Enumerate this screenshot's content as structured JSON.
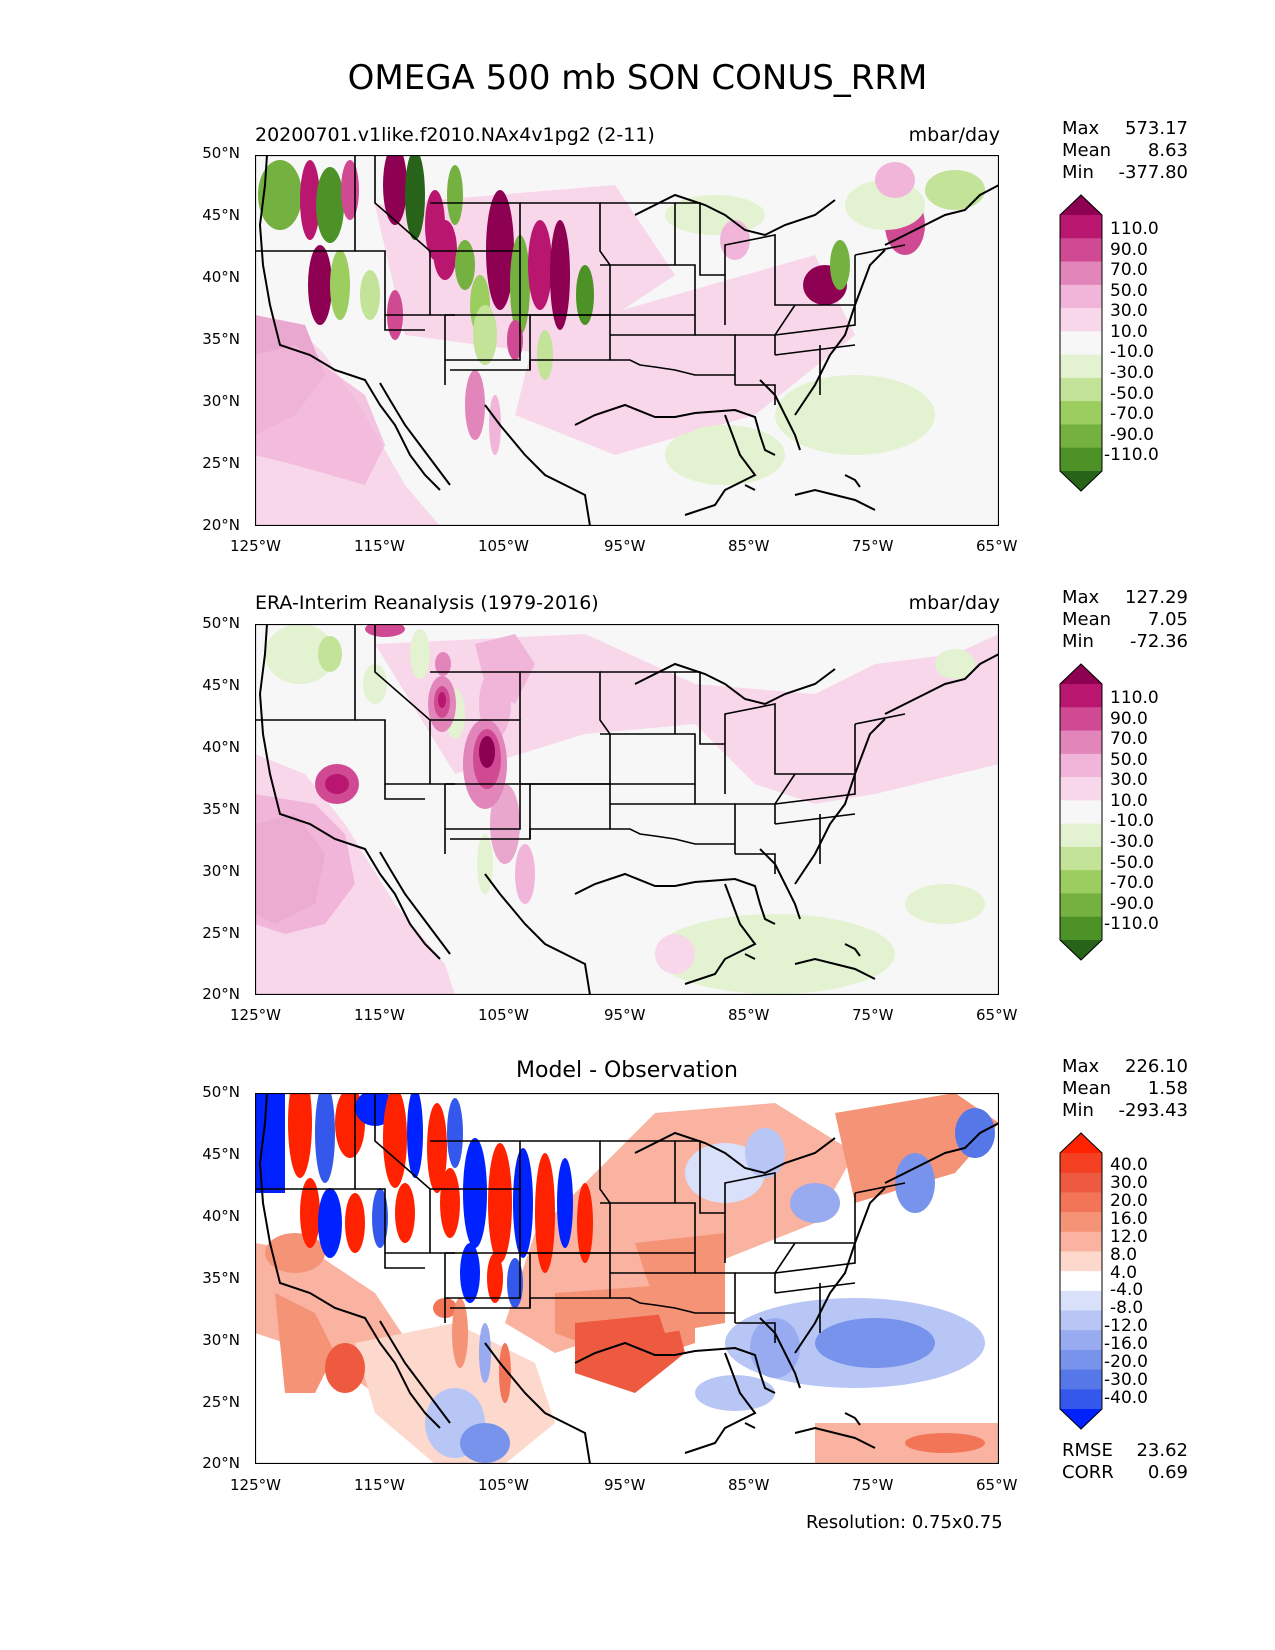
{
  "figure": {
    "title": "OMEGA 500 mb SON CONUS_RRM",
    "resolution_label": "Resolution: 0.75x0.75"
  },
  "chart_data": [
    {
      "type": "heatmap",
      "panel": "model",
      "left_title": "20200701.v1like.f2010.NAx4v1pg2 (2-11)",
      "units": "mbar/day",
      "stats": {
        "max_label": "Max",
        "max": "573.17",
        "mean_label": "Mean",
        "mean": "8.63",
        "min_label": "Min",
        "min": "-377.80"
      },
      "xticks": [
        "125°W",
        "115°W",
        "105°W",
        "95°W",
        "85°W",
        "75°W",
        "65°W"
      ],
      "yticks": [
        "50°N",
        "45°N",
        "40°N",
        "35°N",
        "30°N",
        "25°N",
        "20°N"
      ],
      "xlim": [
        -125,
        -65
      ],
      "ylim": [
        20,
        50
      ],
      "colorbar": {
        "levels": [
          "110.0",
          "90.0",
          "70.0",
          "50.0",
          "30.0",
          "10.0",
          "-10.0",
          "-30.0",
          "-50.0",
          "-70.0",
          "-90.0",
          "-110.0"
        ],
        "colors": [
          "#8e0152",
          "#b8166f",
          "#d04a93",
          "#e285bb",
          "#f1b5d9",
          "#f9d7eb",
          "#f7f7f7",
          "#e3f2d0",
          "#c2e398",
          "#9bcd5f",
          "#74b141",
          "#4c9226",
          "#276419"
        ]
      }
    },
    {
      "type": "heatmap",
      "panel": "observation",
      "left_title": "ERA-Interim Reanalysis (1979-2016)",
      "units": "mbar/day",
      "stats": {
        "max_label": "Max",
        "max": "127.29",
        "mean_label": "Mean",
        "mean": "7.05",
        "min_label": "Min",
        "min": "-72.36"
      },
      "xticks": [
        "125°W",
        "115°W",
        "105°W",
        "95°W",
        "85°W",
        "75°W",
        "65°W"
      ],
      "yticks": [
        "50°N",
        "45°N",
        "40°N",
        "35°N",
        "30°N",
        "25°N",
        "20°N"
      ],
      "xlim": [
        -125,
        -65
      ],
      "ylim": [
        20,
        50
      ],
      "colorbar": {
        "levels": [
          "110.0",
          "90.0",
          "70.0",
          "50.0",
          "30.0",
          "10.0",
          "-10.0",
          "-30.0",
          "-50.0",
          "-70.0",
          "-90.0",
          "-110.0"
        ],
        "colors": [
          "#8e0152",
          "#b8166f",
          "#d04a93",
          "#e285bb",
          "#f1b5d9",
          "#f9d7eb",
          "#f7f7f7",
          "#e3f2d0",
          "#c2e398",
          "#9bcd5f",
          "#74b141",
          "#4c9226",
          "#276419"
        ]
      }
    },
    {
      "type": "heatmap",
      "panel": "difference",
      "center_title": "Model - Observation",
      "stats": {
        "max_label": "Max",
        "max": "226.10",
        "mean_label": "Mean",
        "mean": "1.58",
        "min_label": "Min",
        "min": "-293.43"
      },
      "metrics": {
        "rmse_label": "RMSE",
        "rmse": "23.62",
        "corr_label": "CORR",
        "corr": "0.69"
      },
      "xticks": [
        "125°W",
        "115°W",
        "105°W",
        "95°W",
        "85°W",
        "75°W",
        "65°W"
      ],
      "yticks": [
        "50°N",
        "45°N",
        "40°N",
        "35°N",
        "30°N",
        "25°N",
        "20°N"
      ],
      "xlim": [
        -125,
        -65
      ],
      "ylim": [
        20,
        50
      ],
      "colorbar": {
        "levels": [
          "40.0",
          "30.0",
          "20.0",
          "16.0",
          "12.0",
          "8.0",
          "4.0",
          "-4.0",
          "-8.0",
          "-12.0",
          "-16.0",
          "-20.0",
          "-30.0",
          "-40.0"
        ],
        "colors": [
          "#ff2200",
          "#f43f23",
          "#ee5a3f",
          "#f27558",
          "#f59377",
          "#f9b3a0",
          "#fcd8cd",
          "#ffffff",
          "#d8e0fa",
          "#b8c6f5",
          "#98abf0",
          "#7893ec",
          "#5677e8",
          "#3458ec",
          "#0022ff"
        ]
      }
    }
  ]
}
